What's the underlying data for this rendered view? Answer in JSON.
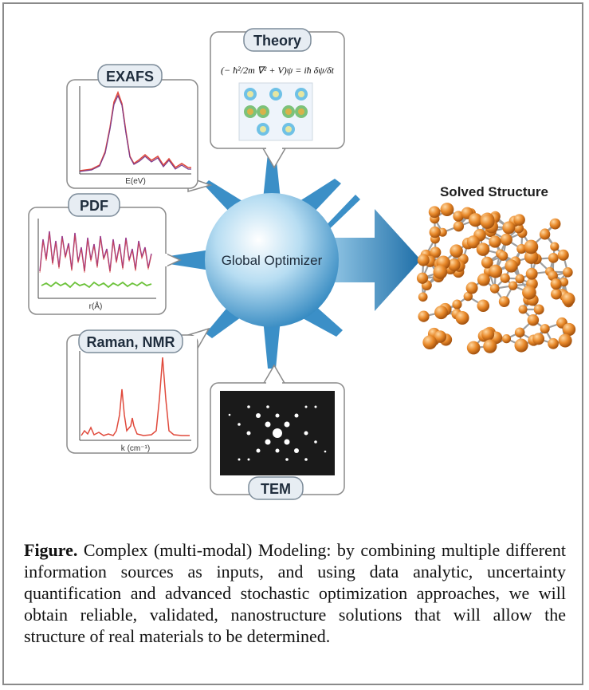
{
  "panels": {
    "exafs": {
      "label": "EXAFS",
      "xlabel": "E(eV)"
    },
    "theory": {
      "label": "Theory"
    },
    "pdf": {
      "label": "PDF",
      "xlabel": "r(Å)"
    },
    "raman": {
      "label": "Raman, NMR",
      "xlabel": "k (cm⁻¹)"
    },
    "tem": {
      "label": "TEM"
    }
  },
  "center": {
    "label": "Global Optimizer"
  },
  "output": {
    "label": "Solved Structure"
  },
  "caption": {
    "lead": "Figure.",
    "text": " Complex (multi-modal) Modeling: by combining multiple different information sources as inputs, and using data analytic, uncertainty quantification and advanced stochastic optimization approaches, we will obtain reliable, validated, nanostructure solutions that will allow the structure of real materials to be determined."
  },
  "colors": {
    "hub": "#5aa9d6",
    "spectrum_red": "#e04a3c",
    "spectrum_purple": "#7a3a8c",
    "difference_green": "#6cc23a",
    "atom": "#e08a2a"
  }
}
